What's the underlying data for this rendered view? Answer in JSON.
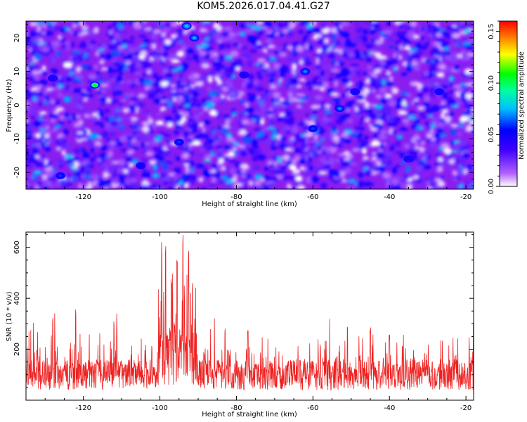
{
  "title": "KOM5.2026.017.04.41.G27",
  "chart_data": [
    {
      "type": "heatmap",
      "title": "KOM5.2026.017.04.41.G27",
      "xlabel": "Height of straight line (km)",
      "ylabel": "Frequency (Hz)",
      "xlim": [
        -135,
        -18
      ],
      "ylim": [
        -25,
        25
      ],
      "xticks": [
        "-120",
        "-100",
        "-80",
        "-60",
        "-40",
        "-20"
      ],
      "yticks": [
        "-20",
        "-10",
        "0",
        "10",
        "20"
      ],
      "colorbar": {
        "label": "Normalized spectral amplitude",
        "range": [
          0.0,
          0.16
        ],
        "ticks": [
          "0.00",
          "0.05",
          "0.10",
          "0.15"
        ],
        "colormap": [
          "#ffffff",
          "#8000ff",
          "#0000ff",
          "#00ffff",
          "#00ff00",
          "#ffff00",
          "#ff0000"
        ]
      },
      "description_values": "background ~0.005-0.03 purple/blue with dense speckle; peaks up to ~0.11 near (-117 km, 6 Hz)",
      "hotspots": [
        {
          "x": -117,
          "y": 6,
          "v": 0.11
        },
        {
          "x": -93,
          "y": 23.5,
          "v": 0.08
        },
        {
          "x": -91,
          "y": 20,
          "v": 0.075
        },
        {
          "x": -62,
          "y": 10,
          "v": 0.07
        },
        {
          "x": -53,
          "y": -1,
          "v": 0.07
        },
        {
          "x": -126,
          "y": -21,
          "v": 0.06
        },
        {
          "x": -95,
          "y": -11,
          "v": 0.06
        },
        {
          "x": -60,
          "y": -7,
          "v": 0.06
        },
        {
          "x": -49,
          "y": 4,
          "v": 0.055
        },
        {
          "x": -27,
          "y": 4,
          "v": 0.055
        },
        {
          "x": -105,
          "y": -18,
          "v": 0.055
        },
        {
          "x": -78,
          "y": 9,
          "v": 0.05
        },
        {
          "x": -35,
          "y": -16,
          "v": 0.05
        },
        {
          "x": -128,
          "y": 8,
          "v": 0.05
        }
      ]
    },
    {
      "type": "line",
      "xlabel": "Height of straight line (km)",
      "ylabel": "SNR (10 * v/v)",
      "xlim": [
        -135,
        -18
      ],
      "ylim": [
        0,
        660
      ],
      "xticks": [
        "-120",
        "-100",
        "-80",
        "-60",
        "-40",
        "-20"
      ],
      "yticks": [
        "200",
        "400",
        "600"
      ],
      "color": "#ee2222",
      "baseline_range": [
        20,
        270
      ],
      "description_values": "noise ~30-250 with spikes to ~370; strong burst between -100 and -91 km reaching ~660",
      "peaks": [
        {
          "x": -128,
          "y": 330
        },
        {
          "x": -122,
          "y": 370
        },
        {
          "x": -112,
          "y": 320
        },
        {
          "x": -99.5,
          "y": 620
        },
        {
          "x": -98.5,
          "y": 630
        },
        {
          "x": -97,
          "y": 480
        },
        {
          "x": -95.5,
          "y": 580
        },
        {
          "x": -94,
          "y": 660
        },
        {
          "x": -92.5,
          "y": 600
        },
        {
          "x": -91.5,
          "y": 470
        },
        {
          "x": -83,
          "y": 290
        },
        {
          "x": -77,
          "y": 290
        },
        {
          "x": -51,
          "y": 300
        },
        {
          "x": -45,
          "y": 290
        },
        {
          "x": -40,
          "y": 260
        }
      ]
    }
  ]
}
